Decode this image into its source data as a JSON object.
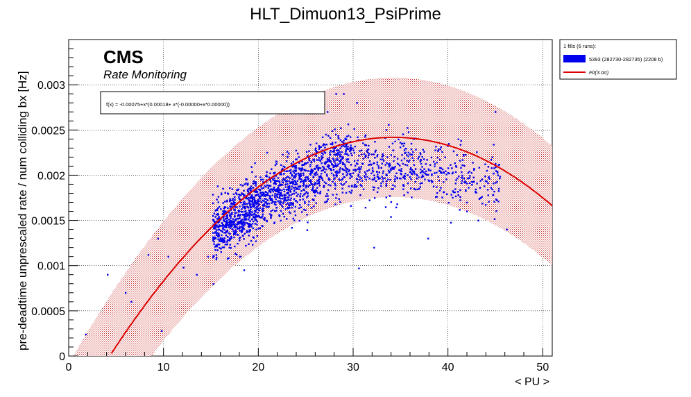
{
  "chart_data": {
    "type": "scatter",
    "title": "HLT_Dimuon13_PsiPrime",
    "xlabel": "< PU >",
    "ylabel": "pre-deadtime unprescaled rate / num colliding bx [Hz]",
    "xlim": [
      0,
      51
    ],
    "ylim": [
      0,
      0.0035
    ],
    "x_ticks": [
      0,
      10,
      20,
      30,
      40,
      50
    ],
    "x_tick_labels": [
      "0",
      "10",
      "20",
      "30",
      "40",
      "50"
    ],
    "y_ticks": [
      0,
      0.0005,
      0.001,
      0.0015,
      0.002,
      0.0025,
      0.003
    ],
    "y_tick_labels": [
      "0",
      "0.0005",
      "0.001",
      "0.0015",
      "0.002",
      "0.0025",
      "0.003"
    ],
    "grid": true,
    "cms_label": "CMS",
    "cms_sublabel": "Rate Monitoring",
    "fit_formula": "f(x) = -0.00075+x*(0.00018+ x*(-0.00000+x*0.00000))",
    "legend": {
      "header": "1 fills (6 runs):",
      "entries": [
        "5393 (282730-282735) (2208 b)",
        "Fit(3.0σ)"
      ],
      "placement": "top-right outside plot"
    },
    "colors": {
      "points": "#0000ee",
      "fit": "#dd0000",
      "band": "#cc3333"
    },
    "fit": {
      "c0": -0.00075,
      "c1": 0.000185,
      "c2": -2.7e-06,
      "band_width": 0.00066
    },
    "series": [
      {
        "name": "5393 (282730-282735) (2208 b)",
        "outliers": [
          [
            1.8,
            0.00024
          ],
          [
            4.1,
            0.0009
          ],
          [
            6.0,
            0.0007
          ],
          [
            6.6,
            0.0006
          ],
          [
            8.4,
            0.00112
          ],
          [
            9.4,
            0.0013
          ],
          [
            9.8,
            0.00028
          ],
          [
            10.5,
            0.0011
          ],
          [
            12.1,
            0.00098
          ],
          [
            13.5,
            0.0009
          ],
          [
            14.7,
            0.0011
          ],
          [
            18.5,
            0.00095
          ],
          [
            30.6,
            0.00097
          ],
          [
            32.2,
            0.0012
          ],
          [
            37.9,
            0.0013
          ],
          [
            45.0,
            0.0027
          ],
          [
            43.2,
            0.0015
          ],
          [
            46.2,
            0.0014
          ],
          [
            29.0,
            0.0029
          ],
          [
            28.2,
            0.0029
          ],
          [
            30.4,
            0.0028
          ],
          [
            33.5,
            0.0025
          ],
          [
            42.0,
            0.0016
          ],
          [
            44.1,
            0.00205
          ],
          [
            27.3,
            0.0027
          ]
        ],
        "clusters": [
          {
            "x": [
              15.2,
              20
            ],
            "y_center": [
              0.00135,
              0.0017
            ],
            "spread": 0.00016,
            "count": 620
          },
          {
            "x": [
              20,
              25
            ],
            "y_center": [
              0.0017,
              0.00195
            ],
            "spread": 0.00016,
            "count": 480
          },
          {
            "x": [
              25,
              29.5
            ],
            "y_center": [
              0.00195,
              0.0022
            ],
            "spread": 0.00017,
            "count": 380
          },
          {
            "x": [
              29.5,
              36.5
            ],
            "y_center": [
              0.0021,
              0.00205
            ],
            "spread": 0.00018,
            "count": 300
          },
          {
            "x": [
              36.5,
              45.5
            ],
            "y_center": [
              0.00205,
              0.0019
            ],
            "spread": 0.00017,
            "count": 240
          }
        ]
      }
    ]
  }
}
